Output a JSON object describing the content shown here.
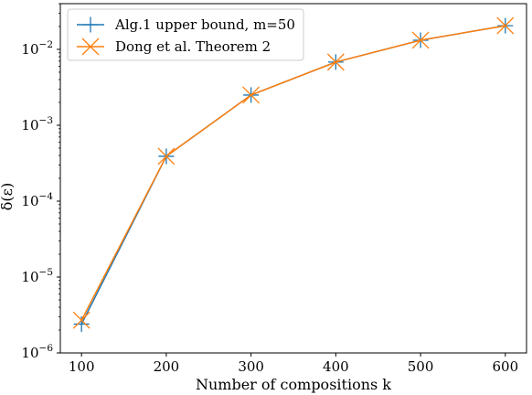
{
  "chart_data": {
    "type": "line",
    "xlabel": "Number of compositions k",
    "ylabel": "δ(ε)",
    "x": [
      100,
      200,
      300,
      400,
      500,
      600
    ],
    "xticks": [
      "100",
      "200",
      "300",
      "400",
      "500",
      "600"
    ],
    "yscale": "log",
    "ylim": [
      1e-06,
      0.04
    ],
    "yticks": [
      {
        "value": 1e-06,
        "base": "10",
        "exp": "−6"
      },
      {
        "value": 1e-05,
        "base": "10",
        "exp": "−5"
      },
      {
        "value": 0.0001,
        "base": "10",
        "exp": "−4"
      },
      {
        "value": 0.001,
        "base": "10",
        "exp": "−3"
      },
      {
        "value": 0.01,
        "base": "10",
        "exp": "−2"
      }
    ],
    "grid": false,
    "legend_position": "top-left",
    "series": [
      {
        "name": "Alg.1 upper bound, m=50",
        "color": "#1f77b4",
        "marker": "plus",
        "values": [
          2.4e-06,
          0.00039,
          0.0025,
          0.0068,
          0.0132,
          0.0205
        ]
      },
      {
        "name": "Dong et al. Theorem 2",
        "color": "#ff7f0e",
        "marker": "x",
        "values": [
          2.7e-06,
          0.00039,
          0.0025,
          0.0068,
          0.0132,
          0.0205
        ]
      }
    ]
  }
}
